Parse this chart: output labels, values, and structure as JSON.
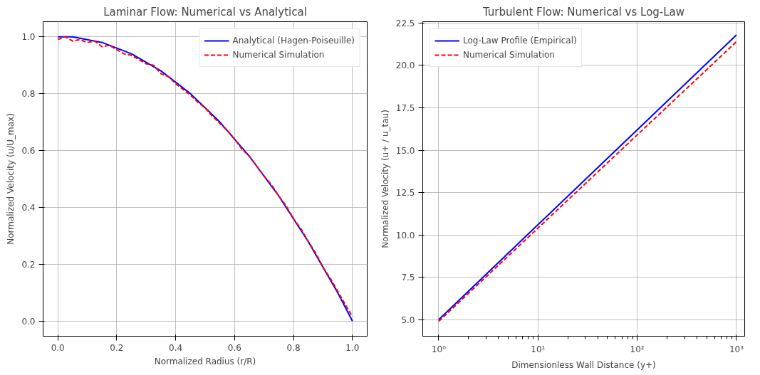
{
  "chart_data": [
    {
      "type": "line",
      "title": "Laminar Flow: Numerical vs Analytical",
      "xlabel": "Normalized Radius (r/R)",
      "ylabel": "Normalized Velocity (u/U_max)",
      "xlim": [
        -0.05,
        1.05
      ],
      "ylim": [
        -0.053,
        1.053
      ],
      "xticks": [
        {
          "value": 0,
          "label": "0.0"
        },
        0.2,
        0.4,
        0.6,
        0.8,
        {
          "value": 1,
          "label": "1.0"
        }
      ],
      "yticks": [
        {
          "value": 0,
          "label": "0.0"
        },
        0.2,
        0.4,
        0.6,
        0.8,
        {
          "value": 1,
          "label": "1.0"
        }
      ],
      "grid": true,
      "legend": "top right",
      "series": [
        {
          "name": "Analytical (Hagen-Poiseuille)",
          "color": "#0000ff",
          "line_style": "solid",
          "x": [
            0,
            0.05,
            0.1,
            0.15,
            0.2,
            0.25,
            0.3,
            0.35,
            0.4,
            0.45,
            0.5,
            0.55,
            0.6,
            0.65,
            0.7,
            0.75,
            0.8,
            0.85,
            0.9,
            0.95,
            1.0
          ],
          "values": [
            1.0,
            1.0,
            0.99,
            0.98,
            0.96,
            0.94,
            0.91,
            0.88,
            0.84,
            0.8,
            0.75,
            0.7,
            0.64,
            0.58,
            0.51,
            0.44,
            0.36,
            0.28,
            0.19,
            0.1,
            0.0
          ]
        },
        {
          "name": "Numerical Simulation",
          "color": "#ff0000",
          "line_style": "dashed",
          "x": [
            0,
            0.025,
            0.05,
            0.075,
            0.1,
            0.125,
            0.15,
            0.175,
            0.2,
            0.225,
            0.25,
            0.275,
            0.3,
            0.325,
            0.35,
            0.375,
            0.4,
            0.425,
            0.45,
            0.475,
            0.5,
            0.525,
            0.55,
            0.575,
            0.6,
            0.625,
            0.65,
            0.675,
            0.7,
            0.725,
            0.75,
            0.775,
            0.8,
            0.825,
            0.85,
            0.875,
            0.9,
            0.925,
            0.95,
            0.975,
            1.0
          ],
          "values": [
            0.99,
            1.0,
            0.985,
            0.99,
            0.98,
            0.985,
            0.965,
            0.97,
            0.955,
            0.94,
            0.935,
            0.92,
            0.905,
            0.9,
            0.87,
            0.86,
            0.835,
            0.815,
            0.795,
            0.77,
            0.75,
            0.72,
            0.695,
            0.67,
            0.64,
            0.605,
            0.58,
            0.545,
            0.51,
            0.48,
            0.44,
            0.405,
            0.36,
            0.325,
            0.28,
            0.24,
            0.19,
            0.15,
            0.105,
            0.06,
            0.015
          ]
        }
      ]
    },
    {
      "type": "line",
      "title": "Turbulent Flow: Numerical vs Log-Law",
      "xlabel": "Dimensionless Wall Distance (y+)",
      "ylabel": "Normalized Velocity (u+ / u_tau)",
      "log": "x",
      "xlim": [
        0.69,
        1210
      ],
      "ylim": [
        4.02,
        22.58
      ],
      "xticks": [
        {
          "value": 1,
          "label": "10⁰"
        },
        {
          "value": 10,
          "label": "10¹"
        },
        {
          "value": 100,
          "label": "10²"
        },
        {
          "value": 1000,
          "label": "10³"
        }
      ],
      "yticks": [
        {
          "value": 5,
          "label": "5.0"
        },
        7.5,
        {
          "value": 10,
          "label": "10.0"
        },
        12.5,
        {
          "value": 15,
          "label": "15.0"
        },
        17.5,
        {
          "value": 20,
          "label": "20.0"
        },
        22.5
      ],
      "grid": true,
      "legend": "top left",
      "series": [
        {
          "name": "Log-Law Profile (Empirical)",
          "color": "#0000ff",
          "line_style": "solid",
          "x": [
            1,
            10,
            100,
            1000
          ],
          "values": [
            5.0,
            10.6,
            16.2,
            21.8
          ]
        },
        {
          "name": "Numerical Simulation",
          "color": "#ff0000",
          "line_style": "dashed",
          "x": [
            1,
            10,
            100,
            1000
          ],
          "values": [
            4.9,
            10.4,
            15.9,
            21.4
          ]
        }
      ]
    }
  ]
}
